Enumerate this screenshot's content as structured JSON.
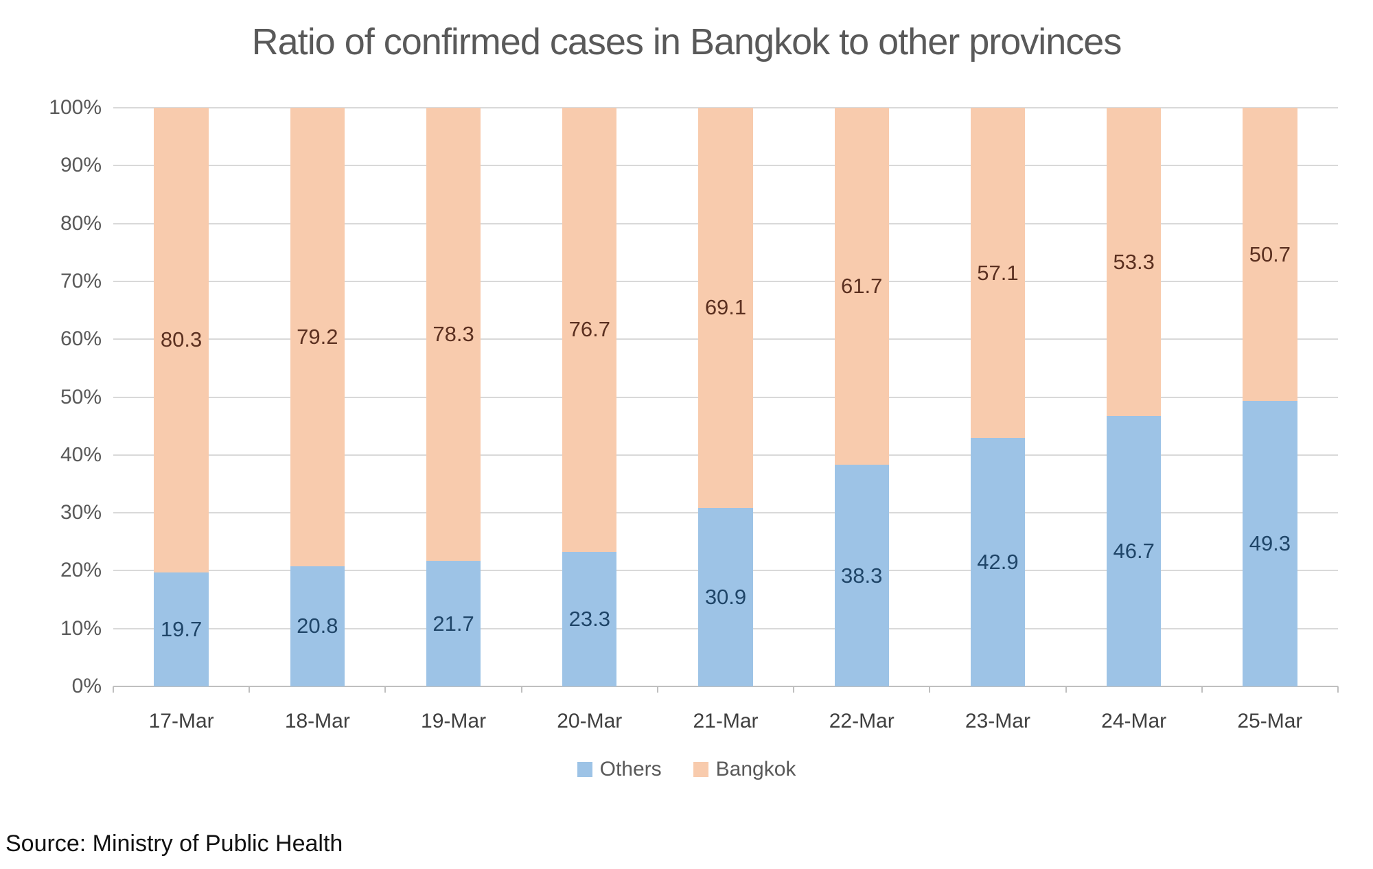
{
  "title": "Ratio of confirmed cases in Bangkok to other provinces",
  "source_note": "Source: Ministry of Public Health",
  "legend": {
    "others": "Others",
    "bangkok": "Bangkok"
  },
  "colors": {
    "others_fill": "#9DC3E6",
    "bangkok_fill": "#F8CBAD",
    "others_label_text": "#1F4568",
    "bangkok_label_text": "#5B3020",
    "gridline": "#D9D9D9",
    "axis_line": "#BFBFBF",
    "title_text": "#595959",
    "y_axis_text": "#595959",
    "x_axis_text": "#404040"
  },
  "chart_data": {
    "type": "bar",
    "stacked": true,
    "stacking": "percent",
    "title": "Ratio of confirmed cases in Bangkok to other provinces",
    "xlabel": "",
    "ylabel": "",
    "ylim": [
      0,
      100
    ],
    "y_ticks": [
      "0%",
      "10%",
      "20%",
      "30%",
      "40%",
      "50%",
      "60%",
      "70%",
      "80%",
      "90%",
      "100%"
    ],
    "grid": true,
    "legend_position": "bottom",
    "categories": [
      "17-Mar",
      "18-Mar",
      "19-Mar",
      "20-Mar",
      "21-Mar",
      "22-Mar",
      "23-Mar",
      "24-Mar",
      "25-Mar"
    ],
    "series": [
      {
        "name": "Others",
        "color": "#9DC3E6",
        "label_color": "#1F4568",
        "values": [
          19.7,
          20.8,
          21.7,
          23.3,
          30.9,
          38.3,
          42.9,
          46.7,
          49.3
        ]
      },
      {
        "name": "Bangkok",
        "color": "#F8CBAD",
        "label_color": "#5B3020",
        "values": [
          80.3,
          79.2,
          78.3,
          76.7,
          69.1,
          61.7,
          57.1,
          53.3,
          50.7
        ]
      }
    ]
  }
}
